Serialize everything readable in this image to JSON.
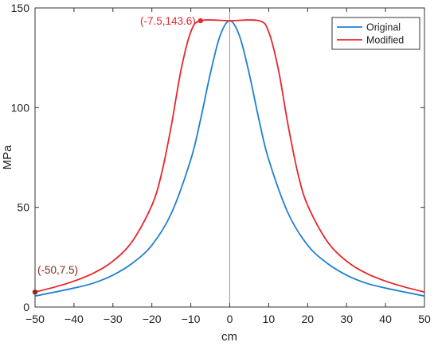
{
  "chart_data": {
    "type": "line",
    "xlabel": "cm",
    "ylabel": "MPa",
    "xlim": [
      -50,
      50
    ],
    "ylim": [
      0,
      150
    ],
    "xticks": [
      -50,
      -40,
      -30,
      -20,
      -10,
      0,
      10,
      20,
      30,
      40,
      50
    ],
    "yticks": [
      0,
      50,
      100,
      150
    ],
    "grid": false,
    "legend_position": "top-right",
    "vertical_reference_line_x": 0,
    "series": [
      {
        "name": "Original",
        "color": "#1f7fd0",
        "x": [
          -50,
          -45,
          -40,
          -35,
          -30,
          -25,
          -20,
          -15,
          -10,
          -7.5,
          -5,
          -2.5,
          0,
          2.5,
          5,
          7.5,
          10,
          15,
          20,
          25,
          30,
          35,
          40,
          45,
          50
        ],
        "values": [
          5.5,
          7.5,
          9.5,
          12,
          16,
          22,
          31,
          47,
          74,
          94,
          117,
          136,
          143.6,
          136,
          117,
          94,
          74,
          47,
          31,
          22,
          16,
          12,
          9.5,
          7.5,
          5.5
        ]
      },
      {
        "name": "Modified",
        "color": "#e8262b",
        "x": [
          -50,
          -45,
          -40,
          -35,
          -30,
          -25,
          -20,
          -17.5,
          -15,
          -12.5,
          -10,
          -7.5,
          0,
          7.5,
          10,
          12.5,
          15,
          17.5,
          20,
          25,
          30,
          35,
          40,
          45,
          50
        ],
        "values": [
          7.5,
          10,
          13,
          17,
          23,
          33,
          51,
          67,
          91,
          119,
          138,
          143.6,
          143.6,
          143.6,
          138,
          119,
          91,
          67,
          51,
          33,
          23,
          17,
          13,
          10,
          7.5
        ]
      }
    ],
    "annotations": [
      {
        "text": "(-7.5,143.6)",
        "x": -7.5,
        "y": 143.6,
        "color": "#e8262b"
      },
      {
        "text": "(-50,7.5)",
        "x": -50,
        "y": 7.5,
        "color": "#8b2a1a"
      }
    ]
  }
}
